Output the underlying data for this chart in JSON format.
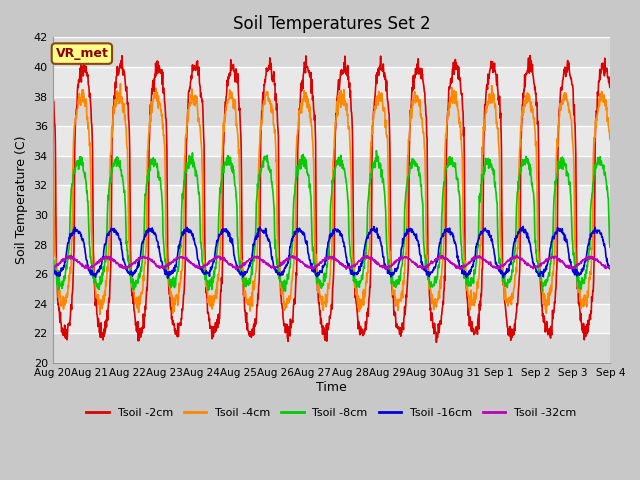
{
  "title": "Soil Temperatures Set 2",
  "xlabel": "Time",
  "ylabel": "Soil Temperature (C)",
  "ylim": [
    20,
    42
  ],
  "yticks": [
    20,
    22,
    24,
    26,
    28,
    30,
    32,
    34,
    36,
    38,
    40,
    42
  ],
  "fig_bg_color": "#c8c8c8",
  "plot_bg": "#e0e0e0",
  "series_colors": [
    "#dd0000",
    "#ff8800",
    "#00cc00",
    "#0000dd",
    "#bb00bb"
  ],
  "series_labels": [
    "Tsoil -2cm",
    "Tsoil -4cm",
    "Tsoil -8cm",
    "Tsoil -16cm",
    "Tsoil -32cm"
  ],
  "n_days": 15,
  "samples_per_day": 96,
  "means": [
    31.0,
    31.0,
    29.5,
    27.5,
    26.8
  ],
  "amplitudes": [
    9.0,
    7.0,
    4.2,
    1.5,
    0.35
  ],
  "phase_offsets_hours": [
    0.0,
    1.2,
    2.8,
    5.0,
    9.0
  ],
  "peak_hour": 14.0,
  "sharpness": [
    3.0,
    2.5,
    2.0,
    1.5,
    1.0
  ],
  "xtick_labels": [
    "Aug 20",
    "Aug 21",
    "Aug 22",
    "Aug 23",
    "Aug 24",
    "Aug 25",
    "Aug 26",
    "Aug 27",
    "Aug 28",
    "Aug 29",
    "Aug 30",
    "Aug 31",
    "Sep 1",
    "Sep 2",
    "Sep 3",
    "Sep 4"
  ],
  "linewidth": 1.2
}
